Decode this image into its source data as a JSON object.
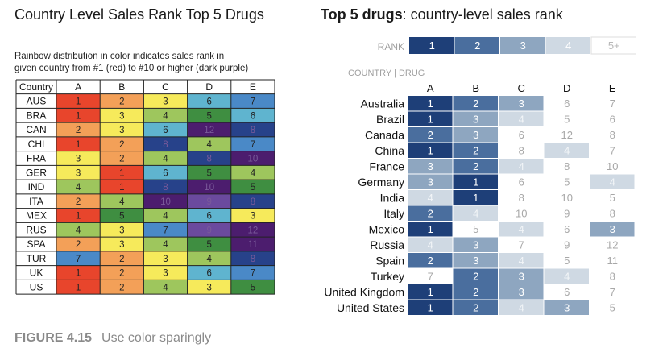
{
  "figure": {
    "label": "FIGURE 4.15",
    "caption": "Use color sparingly"
  },
  "colors": {
    "rank1": "#e8452c",
    "rank2": "#f3a058",
    "rank3": "#f6ea5b",
    "rank4": "#9ec65d",
    "rank5": "#3f8e41",
    "rank6": "#5fb4cf",
    "rank7": "#4a89c7",
    "rank8": "#27428a",
    "rank9": "#6b4a9e",
    "rank10plus": "#4c1d6e",
    "blue1": "#1e3f78",
    "blue2": "#4a6e9e",
    "blue3": "#8ea6c0",
    "blue4": "#cfd9e3",
    "blue5plus": "#ffffff",
    "text_gray": "#a8a8a8"
  },
  "chart_data": [
    {
      "type": "table",
      "title": "Country Level Sales Rank Top 5 Drugs",
      "subtitle": "Rainbow distribution in color indicates sales rank in given country from #1 (red) to #10 or higher (dark purple)",
      "corner_header": "Country",
      "columns": [
        "A",
        "B",
        "C",
        "D",
        "E"
      ],
      "rows": [
        {
          "country": "AUS",
          "ranks": [
            1,
            2,
            3,
            6,
            7
          ]
        },
        {
          "country": "BRA",
          "ranks": [
            1,
            3,
            4,
            5,
            6
          ]
        },
        {
          "country": "CAN",
          "ranks": [
            2,
            3,
            6,
            12,
            8
          ]
        },
        {
          "country": "CHI",
          "ranks": [
            1,
            2,
            8,
            4,
            7
          ]
        },
        {
          "country": "FRA",
          "ranks": [
            3,
            2,
            4,
            8,
            10
          ]
        },
        {
          "country": "GER",
          "ranks": [
            3,
            1,
            6,
            5,
            4
          ]
        },
        {
          "country": "IND",
          "ranks": [
            4,
            1,
            8,
            10,
            5
          ]
        },
        {
          "country": "ITA",
          "ranks": [
            2,
            4,
            10,
            9,
            8
          ]
        },
        {
          "country": "MEX",
          "ranks": [
            1,
            5,
            4,
            6,
            3
          ]
        },
        {
          "country": "RUS",
          "ranks": [
            4,
            3,
            7,
            9,
            12
          ]
        },
        {
          "country": "SPA",
          "ranks": [
            2,
            3,
            4,
            5,
            11
          ]
        },
        {
          "country": "TUR",
          "ranks": [
            7,
            2,
            3,
            4,
            8
          ]
        },
        {
          "country": "UK",
          "ranks": [
            1,
            2,
            3,
            6,
            7
          ]
        },
        {
          "country": "US",
          "ranks": [
            1,
            2,
            4,
            3,
            5
          ]
        }
      ]
    },
    {
      "type": "heatmap",
      "title_bold": "Top 5 drugs",
      "title_rest": ": country-level sales rank",
      "legend_label": "RANK",
      "legend_items": [
        "1",
        "2",
        "3",
        "4",
        "5+"
      ],
      "axis_label": "COUNTRY | DRUG",
      "columns": [
        "A",
        "B",
        "C",
        "D",
        "E"
      ],
      "rows": [
        {
          "country": "Australia",
          "ranks": [
            1,
            2,
            3,
            6,
            7
          ]
        },
        {
          "country": "Brazil",
          "ranks": [
            1,
            3,
            4,
            5,
            6
          ]
        },
        {
          "country": "Canada",
          "ranks": [
            2,
            3,
            6,
            12,
            8
          ]
        },
        {
          "country": "China",
          "ranks": [
            1,
            2,
            8,
            4,
            7
          ]
        },
        {
          "country": "France",
          "ranks": [
            3,
            2,
            4,
            8,
            10
          ]
        },
        {
          "country": "Germany",
          "ranks": [
            3,
            1,
            6,
            5,
            4
          ]
        },
        {
          "country": "India",
          "ranks": [
            4,
            1,
            8,
            10,
            5
          ]
        },
        {
          "country": "Italy",
          "ranks": [
            2,
            4,
            10,
            9,
            8
          ]
        },
        {
          "country": "Mexico",
          "ranks": [
            1,
            5,
            4,
            6,
            3
          ]
        },
        {
          "country": "Russia",
          "ranks": [
            4,
            3,
            7,
            9,
            12
          ]
        },
        {
          "country": "Spain",
          "ranks": [
            2,
            3,
            4,
            5,
            11
          ]
        },
        {
          "country": "Turkey",
          "ranks": [
            7,
            2,
            3,
            4,
            8
          ]
        },
        {
          "country": "United Kingdom",
          "ranks": [
            1,
            2,
            3,
            6,
            7
          ]
        },
        {
          "country": "United States",
          "ranks": [
            1,
            2,
            4,
            3,
            5
          ]
        }
      ]
    }
  ]
}
